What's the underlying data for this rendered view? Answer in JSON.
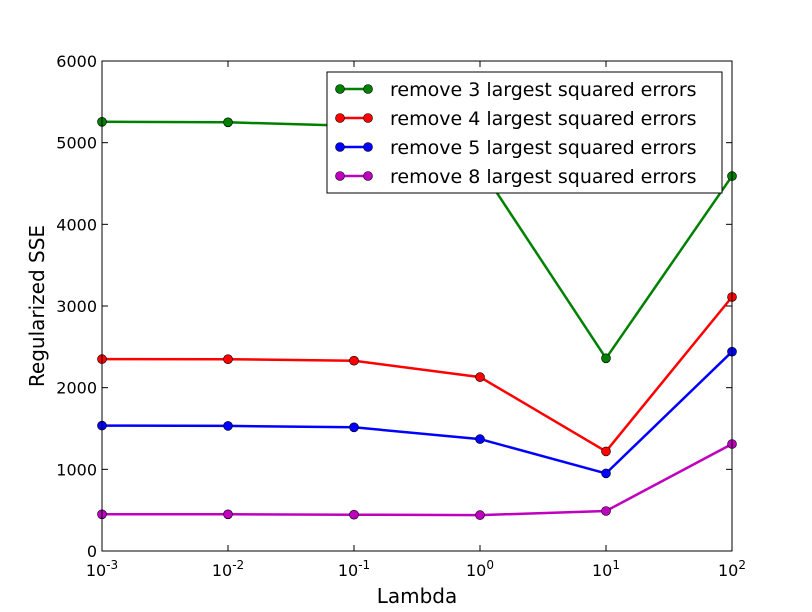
{
  "chart_data": {
    "type": "line",
    "title": "",
    "xlabel": "Lambda",
    "ylabel": "Regularized SSE",
    "xscale": "log",
    "x": [
      0.001,
      0.01,
      0.1,
      1,
      10,
      100
    ],
    "xlim": [
      0.001,
      100
    ],
    "ylim": [
      0,
      6000
    ],
    "x_tick_labels": [
      {
        "base": "10",
        "exp": "-3"
      },
      {
        "base": "10",
        "exp": "-2"
      },
      {
        "base": "10",
        "exp": "-1"
      },
      {
        "base": "10",
        "exp": "0"
      },
      {
        "base": "10",
        "exp": "1"
      },
      {
        "base": "10",
        "exp": "2"
      }
    ],
    "y_ticks": [
      0,
      1000,
      2000,
      3000,
      4000,
      5000,
      6000
    ],
    "y_tick_labels": [
      "0",
      "1000",
      "2000",
      "3000",
      "4000",
      "5000",
      "6000"
    ],
    "grid": false,
    "legend_position": "top-right",
    "series": [
      {
        "name": "remove 3 largest squared errors",
        "color": "#008000",
        "values": [
          5255,
          5250,
          5205,
          4700,
          2360,
          4590
        ]
      },
      {
        "name": "remove 4 largest squared errors",
        "color": "#ff0000",
        "values": [
          2350,
          2348,
          2330,
          2130,
          1220,
          3110
        ]
      },
      {
        "name": "remove 5 largest squared errors",
        "color": "#0000ff",
        "values": [
          1535,
          1532,
          1515,
          1370,
          950,
          2440
        ]
      },
      {
        "name": "remove 8 largest squared errors",
        "color": "#bf00bf",
        "values": [
          450,
          450,
          445,
          440,
          490,
          1310
        ]
      }
    ]
  }
}
